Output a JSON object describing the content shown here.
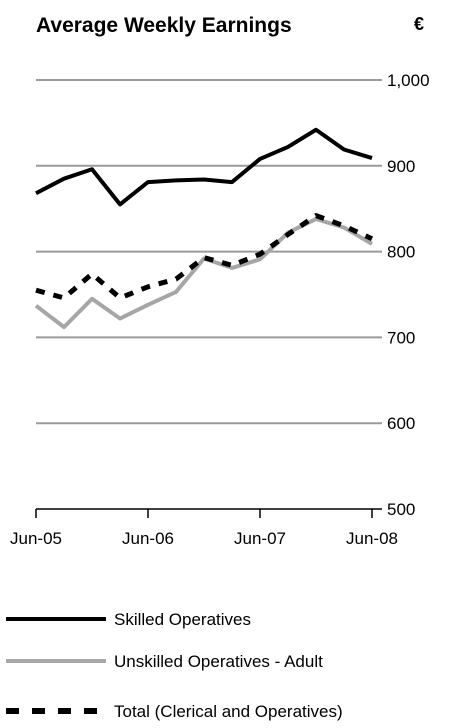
{
  "chart_data": {
    "type": "line",
    "title": "Average Weekly Earnings",
    "unit": "€",
    "xlabel": "",
    "ylabel": "",
    "ylim": [
      500,
      1000
    ],
    "yticks": [
      1000,
      900,
      800,
      700,
      600,
      500
    ],
    "ytick_labels": [
      "1,000",
      "900",
      "800",
      "700",
      "600",
      "500"
    ],
    "xticks": [
      0,
      4,
      8,
      12
    ],
    "xtick_labels": [
      "Jun-05",
      "Jun-06",
      "Jun-07",
      "Jun-08"
    ],
    "x": [
      0,
      1,
      2,
      3,
      4,
      5,
      6,
      7,
      8,
      9,
      10,
      11,
      12
    ],
    "grid": true,
    "legend_position": "bottom",
    "series": [
      {
        "name": "Skilled Operatives",
        "color": "#000000",
        "style": "solid",
        "values": [
          868,
          885,
          896,
          855,
          881,
          883,
          884,
          881,
          908,
          922,
          942,
          919,
          909
        ]
      },
      {
        "name": "Unskilled Operatives - Adult",
        "color": "#a6a6a6",
        "style": "solid",
        "values": [
          737,
          712,
          745,
          722,
          738,
          753,
          792,
          781,
          791,
          822,
          838,
          828,
          809
        ]
      },
      {
        "name": "Total (Clerical and Operatives)",
        "color": "#000000",
        "style": "dashed",
        "values": [
          755,
          746,
          774,
          746,
          759,
          768,
          793,
          784,
          797,
          820,
          842,
          830,
          815
        ]
      }
    ]
  }
}
